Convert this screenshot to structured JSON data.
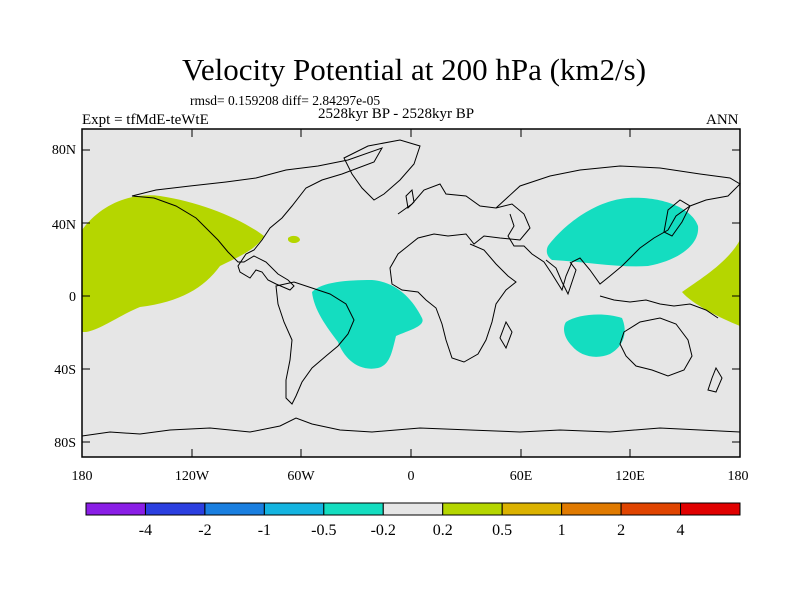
{
  "title": "Velocity Potential at 200 hPa (km2/s)",
  "stats": "rmsd= 0.159208 diff= 2.84297e-05",
  "experiment": "Expt = tfMdE-teWtE",
  "period": "2528kyr BP - 2528kyr BP",
  "season": "ANN",
  "lat_labels": [
    "80N",
    "40N",
    "0",
    "40S",
    "80S"
  ],
  "lon_labels": [
    "180",
    "120W",
    "60W",
    "0",
    "60E",
    "120E",
    "180"
  ],
  "colorbar": {
    "colors": [
      "#8a1ee6",
      "#2b3fe0",
      "#1a7fe0",
      "#14b4e0",
      "#14ddc0",
      "#e6e6e6",
      "#b5d600",
      "#dbb200",
      "#e07a00",
      "#e04400",
      "#e00000"
    ],
    "labels": [
      "-4",
      "-2",
      "-1",
      "-0.5",
      "-0.2",
      "0.2",
      "0.5",
      "1",
      "2",
      "4"
    ]
  },
  "colors": {
    "land_ocean_bg": "#e6e6e6",
    "negative_anomaly": "#14ddc0",
    "positive_anomaly": "#b5d600"
  }
}
